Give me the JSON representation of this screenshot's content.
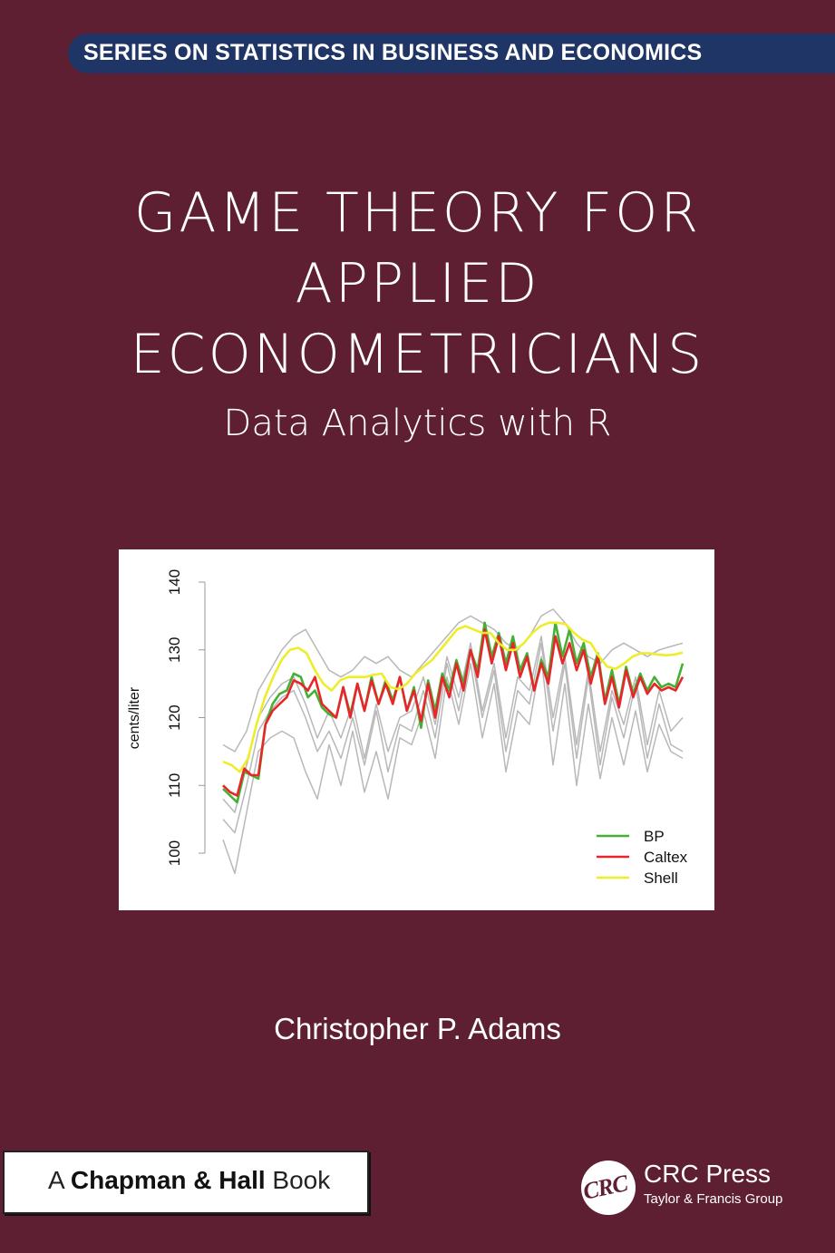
{
  "series_banner": "SERIES ON STATISTICS IN BUSINESS AND ECONOMICS",
  "title_lines": [
    "GAME THEORY FOR",
    "APPLIED",
    "ECONOMETRICIANS"
  ],
  "subtitle": "Data Analytics with R",
  "author": "Christopher P. Adams",
  "imprint": {
    "prefix": "A",
    "name": "Chapman & Hall",
    "suffix": "Book"
  },
  "publisher": {
    "logo_text": "CRC",
    "name": "CRC Press",
    "group": "Taylor & Francis Group"
  },
  "colors": {
    "background": "#5f1f33",
    "banner": "#1e3566",
    "BP": "#44b035",
    "Caltex": "#e8262a",
    "Shell": "#eded2a",
    "other": "#b8b8b8"
  },
  "chart_data": {
    "type": "line",
    "ylabel": "cents/liter",
    "ylim": [
      100,
      140
    ],
    "yticks": [
      100,
      110,
      120,
      130,
      140
    ],
    "legend": "bottom-right",
    "grid": false,
    "series": [
      {
        "name": "BP",
        "color": "#44b035",
        "values": [
          109.5,
          108.5,
          107.5,
          112,
          111.5,
          111,
          119,
          122,
          123.5,
          124,
          126.5,
          126,
          123,
          124,
          121.5,
          120.5,
          120,
          124.5,
          120.5,
          125,
          121,
          126,
          122,
          125.5,
          122.5,
          126,
          121,
          124.5,
          118.5,
          125.5,
          121,
          126.5,
          124,
          128.5,
          125,
          130,
          127,
          134,
          129,
          132.5,
          128,
          132,
          127,
          129.5,
          124,
          128.5,
          126,
          134,
          129,
          133,
          128,
          131,
          126,
          129.5,
          122.5,
          127,
          122,
          127.5,
          123.5,
          126.5,
          124,
          126,
          124.5,
          125,
          124.5,
          128
        ]
      },
      {
        "name": "Caltex",
        "color": "#e8262a",
        "values": [
          110,
          109,
          108.5,
          112.5,
          111.5,
          111.5,
          119,
          121,
          122,
          123,
          125.5,
          125,
          124,
          126,
          122,
          121,
          120,
          124.5,
          120,
          125,
          121,
          125.5,
          122,
          125,
          122,
          126,
          121,
          124,
          119.5,
          125,
          120,
          126,
          123,
          128,
          124,
          130,
          126,
          133,
          128,
          132,
          127,
          131,
          126,
          129,
          124,
          128,
          125,
          132,
          128,
          131,
          127,
          130,
          125,
          129,
          122,
          126,
          121.5,
          127,
          123,
          126,
          123.5,
          125,
          124,
          124.5,
          124,
          126
        ]
      },
      {
        "name": "Shell",
        "color": "#eded2a",
        "values": [
          113.5,
          113,
          112,
          114,
          119,
          123,
          126,
          128.5,
          130,
          130.3,
          129.5,
          127,
          125,
          124,
          125.5,
          126,
          126,
          126,
          126.3,
          126.5,
          124.5,
          124.2,
          125,
          126.5,
          127.5,
          128.5,
          130,
          131.5,
          133,
          133.5,
          133,
          132.5,
          132.5,
          131,
          130,
          130,
          131,
          132.5,
          133.5,
          134,
          134,
          133.8,
          132.5,
          131.5,
          131,
          129,
          127.5,
          127.2,
          128,
          129,
          129.5,
          129.5,
          129.3,
          129.2,
          129.3,
          129.6
        ]
      },
      {
        "color": "#b8b8b8",
        "values": [
          116,
          115,
          118,
          124,
          127,
          130,
          132,
          133,
          130,
          127,
          126,
          127,
          129,
          128,
          129,
          127,
          126,
          128,
          130,
          132,
          134,
          135,
          134,
          133,
          131,
          130,
          132,
          135,
          136,
          134,
          131,
          129,
          128,
          130,
          131,
          130,
          129,
          130,
          130.5,
          131
        ]
      },
      {
        "color": "#b8b8b8",
        "values": [
          105,
          103,
          110,
          118,
          121,
          123,
          124,
          120,
          115,
          118,
          114,
          120,
          113,
          121,
          112,
          119,
          118,
          124,
          117,
          128,
          121,
          130,
          120,
          127,
          115,
          124,
          122,
          131,
          118,
          128,
          114,
          126,
          113,
          123,
          117,
          125,
          114,
          122,
          116,
          115
        ]
      },
      {
        "color": "#b8b8b8",
        "values": [
          102,
          97,
          106,
          115,
          117,
          118,
          117,
          112,
          108,
          116,
          110,
          118,
          109,
          115,
          108,
          117,
          116,
          121,
          114,
          126,
          119,
          128,
          117,
          125,
          112,
          121,
          119,
          129,
          113,
          125,
          110,
          122,
          111,
          120,
          113,
          121,
          112,
          119,
          115,
          114
        ]
      },
      {
        "color": "#b8b8b8",
        "values": [
          108,
          106,
          113,
          120,
          123,
          125,
          126,
          122,
          117,
          121,
          117,
          122,
          114,
          122,
          115,
          120,
          121,
          126,
          119,
          129,
          123,
          131,
          121,
          128,
          117,
          126,
          124,
          132,
          120,
          129,
          116,
          127,
          115,
          124,
          119,
          126,
          116,
          124,
          118,
          120
        ]
      }
    ]
  }
}
